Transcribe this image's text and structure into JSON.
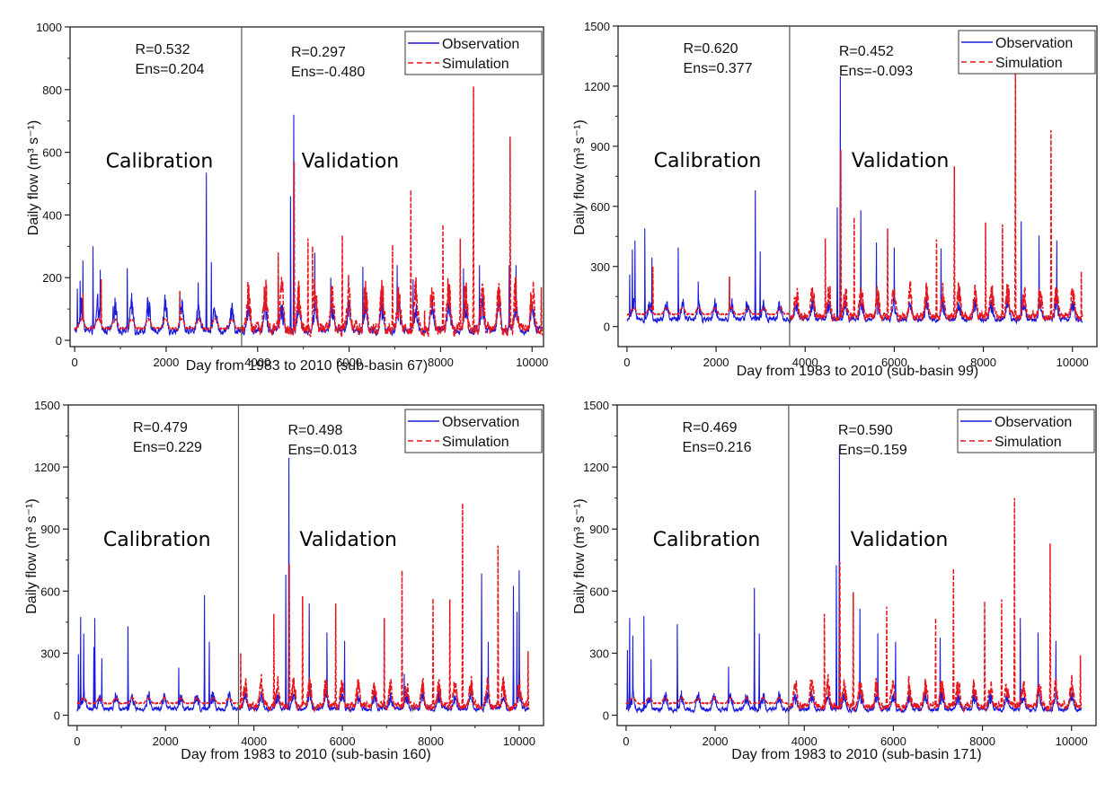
{
  "colors": {
    "observation": "#1a1adc",
    "simulation": "#e8161c",
    "axis": "#222222",
    "divider": "#555555"
  },
  "chart_data": [
    {
      "type": "line",
      "id": "sub-basin-67",
      "xlabel": "Day from 1983 to 2010 (sub-basin 67)",
      "ylabel": "Daily flow (m³ s⁻¹)",
      "xlim": [
        -100,
        10250
      ],
      "ylim": [
        -20,
        1000
      ],
      "xticks": [
        0,
        2000,
        4000,
        6000,
        8000,
        10000
      ],
      "xtick_labels": [
        "0",
        "2000",
        "4000",
        "6000",
        "8000",
        "10000"
      ],
      "yticks": [
        0,
        200,
        400,
        600,
        800,
        1000
      ],
      "ytick_labels": [
        "0",
        "200",
        "400",
        "600",
        "800",
        "1000"
      ],
      "split_day": 3650,
      "legend": [
        "Observation",
        "Simulation"
      ],
      "legend_position": "top-right",
      "annotations": {
        "calibration_label": "Calibration",
        "validation_label": "Validation",
        "calibration_R": "R=0.532",
        "calibration_Ens": "Ens=0.204",
        "validation_R": "R=0.297",
        "validation_Ens": "Ens=-0.480"
      },
      "baseline": {
        "obs": 50,
        "sim": 45,
        "amp": 60
      },
      "series": [
        {
          "name": "Observation",
          "peaks": [
            [
              60,
              165
            ],
            [
              120,
              190
            ],
            [
              180,
              255
            ],
            [
              400,
              300
            ],
            [
              560,
              225
            ],
            [
              1150,
              230
            ],
            [
              2300,
              155
            ],
            [
              2700,
              185
            ],
            [
              2880,
              535
            ],
            [
              2990,
              250
            ],
            [
              4450,
              200
            ],
            [
              4720,
              460
            ],
            [
              4790,
              720
            ],
            [
              5250,
              280
            ],
            [
              5600,
              200
            ],
            [
              6300,
              235
            ],
            [
              7050,
              240
            ],
            [
              7400,
              195
            ],
            [
              8500,
              230
            ],
            [
              8850,
              240
            ],
            [
              9500,
              240
            ],
            [
              9650,
              240
            ]
          ]
        },
        {
          "name": "Simulation",
          "peaks": [
            [
              180,
              150
            ],
            [
              580,
              195
            ],
            [
              2300,
              160
            ],
            [
              4450,
              280
            ],
            [
              4800,
              570
            ],
            [
              5100,
              325
            ],
            [
              5200,
              300
            ],
            [
              5850,
              335
            ],
            [
              6950,
              305
            ],
            [
              7350,
              480
            ],
            [
              7650,
              95
            ],
            [
              8050,
              370
            ],
            [
              8430,
              325
            ],
            [
              8720,
              810
            ],
            [
              9520,
              650
            ],
            [
              10200,
              170
            ]
          ]
        }
      ]
    },
    {
      "type": "line",
      "id": "sub-basin-99",
      "xlabel": "Day from 1983 to 2010 (sub-basin 99)",
      "ylabel": "Daily flow (m³ s⁻¹)",
      "xlim": [
        -200,
        10550
      ],
      "ylim": [
        -100,
        1500
      ],
      "xticks": [
        0,
        2000,
        4000,
        6000,
        8000,
        10000
      ],
      "xtick_labels": [
        "0",
        "2000",
        "4000",
        "6000",
        "8000",
        "10000"
      ],
      "yticks": [
        0,
        300,
        600,
        900,
        1200,
        1500
      ],
      "ytick_labels": [
        "0",
        "300",
        "600",
        "900",
        "1200",
        "1500"
      ],
      "split_day": 3650,
      "legend": [
        "Observation",
        "Simulation"
      ],
      "legend_position": "top-right",
      "annotations": {
        "calibration_label": "Calibration",
        "validation_label": "Validation",
        "calibration_R": "R=0.620",
        "calibration_Ens": "Ens=0.377",
        "validation_R": "R=0.452",
        "validation_Ens": "Ens=-0.093"
      },
      "baseline": {
        "obs": 60,
        "sim": 75,
        "amp": 60
      },
      "series": [
        {
          "name": "Observation",
          "peaks": [
            [
              60,
              260
            ],
            [
              120,
              385
            ],
            [
              180,
              430
            ],
            [
              400,
              490
            ],
            [
              560,
              345
            ],
            [
              1150,
              395
            ],
            [
              1600,
              225
            ],
            [
              2300,
              250
            ],
            [
              2880,
              680
            ],
            [
              2990,
              375
            ],
            [
              4720,
              595
            ],
            [
              4790,
              1250
            ],
            [
              5250,
              580
            ],
            [
              5600,
              420
            ],
            [
              6000,
              395
            ],
            [
              7050,
              390
            ],
            [
              8850,
              525
            ],
            [
              9250,
              455
            ],
            [
              9650,
              430
            ]
          ]
        },
        {
          "name": "Simulation",
          "peaks": [
            [
              580,
              300
            ],
            [
              2300,
              250
            ],
            [
              4450,
              440
            ],
            [
              4800,
              880
            ],
            [
              5100,
              545
            ],
            [
              5850,
              490
            ],
            [
              6950,
              435
            ],
            [
              7350,
              800
            ],
            [
              8050,
              520
            ],
            [
              8430,
              510
            ],
            [
              8720,
              1280
            ],
            [
              9520,
              980
            ],
            [
              10200,
              275
            ]
          ]
        }
      ]
    },
    {
      "type": "line",
      "id": "sub-basin-160",
      "xlabel": "Day from 1983 to 2010 (sub-basin 160)",
      "ylabel": "Daily flow (m³ s⁻¹)",
      "xlim": [
        -200,
        10550
      ],
      "ylim": [
        -50,
        1500
      ],
      "xticks": [
        0,
        2000,
        4000,
        6000,
        8000,
        10000
      ],
      "xtick_labels": [
        "0",
        "2000",
        "4000",
        "6000",
        "8000",
        "10000"
      ],
      "yticks": [
        0,
        300,
        600,
        900,
        1200,
        1500
      ],
      "ytick_labels": [
        "0",
        "300",
        "600",
        "900",
        "1200",
        "1500"
      ],
      "split_day": 3650,
      "legend": [
        "Observation",
        "Simulation"
      ],
      "legend_position": "top-right",
      "annotations": {
        "calibration_label": "Calibration",
        "validation_label": "Validation",
        "calibration_R": "R=0.479",
        "calibration_Ens": "Ens=0.229",
        "validation_R": "R=0.498",
        "validation_Ens": "Ens=0.013"
      },
      "baseline": {
        "obs": 50,
        "sim": 70,
        "amp": 50
      },
      "series": [
        {
          "name": "Observation",
          "peaks": [
            [
              30,
              295
            ],
            [
              80,
              475
            ],
            [
              150,
              395
            ],
            [
              380,
              330
            ],
            [
              400,
              470
            ],
            [
              560,
              275
            ],
            [
              1150,
              430
            ],
            [
              2300,
              230
            ],
            [
              2880,
              580
            ],
            [
              2990,
              355
            ],
            [
              4720,
              680
            ],
            [
              4790,
              1245
            ],
            [
              5250,
              540
            ],
            [
              5650,
              400
            ],
            [
              6050,
              360
            ],
            [
              7400,
              200
            ],
            [
              9150,
              685
            ],
            [
              9300,
              355
            ],
            [
              9870,
              625
            ],
            [
              9950,
              500
            ],
            [
              10000,
              700
            ]
          ]
        },
        {
          "name": "Simulation",
          "peaks": [
            [
              3700,
              300
            ],
            [
              4450,
              490
            ],
            [
              4800,
              730
            ],
            [
              5100,
              575
            ],
            [
              5850,
              540
            ],
            [
              6950,
              470
            ],
            [
              7350,
              700
            ],
            [
              8050,
              565
            ],
            [
              8430,
              560
            ],
            [
              8720,
              1025
            ],
            [
              9520,
              820
            ],
            [
              10200,
              310
            ]
          ]
        }
      ]
    },
    {
      "type": "line",
      "id": "sub-basin-171",
      "xlabel": "Day from 1983 to 2010 (sub-basin 171)",
      "ylabel": "Daily flow (m³ s⁻¹)",
      "xlim": [
        -200,
        10550
      ],
      "ylim": [
        -50,
        1500
      ],
      "xticks": [
        0,
        2000,
        4000,
        6000,
        8000,
        10000
      ],
      "xtick_labels": [
        "0",
        "2000",
        "4000",
        "6000",
        "8000",
        "10000"
      ],
      "yticks": [
        0,
        300,
        600,
        900,
        1200,
        1500
      ],
      "ytick_labels": [
        "0",
        "300",
        "600",
        "900",
        "1200",
        "1500"
      ],
      "split_day": 3650,
      "legend": [
        "Observation",
        "Simulation"
      ],
      "legend_position": "top-right",
      "annotations": {
        "calibration_label": "Calibration",
        "validation_label": "Validation",
        "calibration_R": "R=0.469",
        "calibration_Ens": "Ens=0.216",
        "validation_R": "R=0.590",
        "validation_Ens": "Ens=0.159"
      },
      "baseline": {
        "obs": 45,
        "sim": 70,
        "amp": 50
      },
      "series": [
        {
          "name": "Observation",
          "peaks": [
            [
              30,
              315
            ],
            [
              80,
              470
            ],
            [
              150,
              385
            ],
            [
              400,
              480
            ],
            [
              560,
              270
            ],
            [
              1150,
              440
            ],
            [
              2300,
              235
            ],
            [
              2880,
              615
            ],
            [
              2990,
              395
            ],
            [
              4720,
              725
            ],
            [
              4790,
              1300
            ],
            [
              5250,
              515
            ],
            [
              5650,
              395
            ],
            [
              6050,
              355
            ],
            [
              7050,
              375
            ],
            [
              8850,
              470
            ],
            [
              9250,
              400
            ],
            [
              9650,
              360
            ]
          ]
        },
        {
          "name": "Simulation",
          "peaks": [
            [
              4450,
              490
            ],
            [
              4800,
              740
            ],
            [
              5100,
              595
            ],
            [
              5850,
              525
            ],
            [
              6950,
              470
            ],
            [
              7350,
              710
            ],
            [
              8050,
              550
            ],
            [
              8430,
              560
            ],
            [
              8720,
              1050
            ],
            [
              9520,
              830
            ],
            [
              10200,
              290
            ]
          ]
        }
      ]
    }
  ]
}
